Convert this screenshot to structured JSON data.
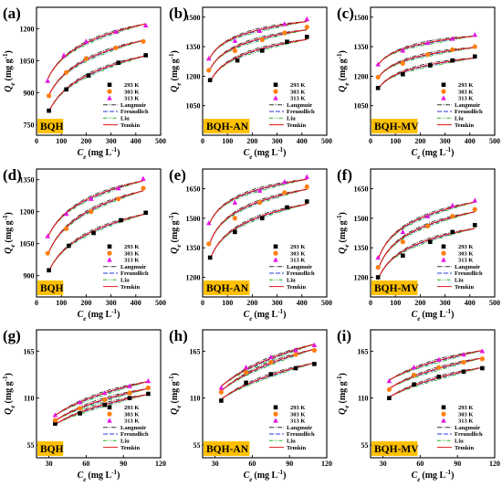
{
  "chart_data": [
    {
      "panel": "(a)",
      "type": "scatter",
      "sample_label": "BQH",
      "xlabel": "Ce (mg L-1)",
      "ylabel": "Qe (mg g-1)",
      "xlim": [
        0,
        500
      ],
      "ylim": [
        700,
        1300
      ],
      "xticks": [
        "0",
        "100",
        "200",
        "300",
        "400",
        "500"
      ],
      "yticks": [
        "750",
        "900",
        "1050",
        "1200"
      ],
      "series": [
        {
          "name": "293 K",
          "x": [
            50,
            120,
            210,
            330,
            440
          ],
          "y": [
            815,
            915,
            980,
            1040,
            1075
          ]
        },
        {
          "name": "303 K",
          "x": [
            50,
            120,
            200,
            320,
            430
          ],
          "y": [
            885,
            995,
            1060,
            1110,
            1140
          ]
        },
        {
          "name": "313 K",
          "x": [
            45,
            110,
            200,
            320,
            440
          ],
          "y": [
            955,
            1075,
            1140,
            1185,
            1215
          ]
        }
      ],
      "models": [
        "Langmuir",
        "Freundlich",
        "Liu",
        "Temkin"
      ]
    },
    {
      "panel": "(b)",
      "type": "scatter",
      "sample_label": "BQH-AN",
      "xlabel": "Ce (mg L-1)",
      "ylabel": "Qe (mg g-1)",
      "xlim": [
        0,
        500
      ],
      "ylim": [
        900,
        1550
      ],
      "xticks": [
        "0",
        "100",
        "200",
        "300",
        "400",
        "500"
      ],
      "yticks": [
        "1050",
        "1200",
        "1350",
        "1500"
      ],
      "series": [
        {
          "name": "293 K",
          "x": [
            30,
            140,
            240,
            340,
            420
          ],
          "y": [
            1180,
            1280,
            1330,
            1375,
            1400
          ]
        },
        {
          "name": "303 K",
          "x": [
            25,
            130,
            240,
            330,
            420
          ],
          "y": [
            1230,
            1330,
            1385,
            1420,
            1450
          ]
        },
        {
          "name": "313 K",
          "x": [
            25,
            130,
            230,
            330,
            420
          ],
          "y": [
            1290,
            1380,
            1430,
            1465,
            1490
          ]
        }
      ],
      "models": [
        "Langmuir",
        "Freundlich",
        "Liu",
        "Temkin"
      ]
    },
    {
      "panel": "(c)",
      "type": "scatter",
      "sample_label": "BQH-MV",
      "xlabel": "Ce (mg L-1)",
      "ylabel": "Qe (mg g-1)",
      "xlim": [
        0,
        500
      ],
      "ylim": [
        900,
        1550
      ],
      "xticks": [
        "0",
        "100",
        "200",
        "300",
        "400",
        "500"
      ],
      "yticks": [
        "1050",
        "1200",
        "1350",
        "1500"
      ],
      "series": [
        {
          "name": "293 K",
          "x": [
            30,
            130,
            240,
            330,
            420
          ],
          "y": [
            1140,
            1210,
            1255,
            1280,
            1300
          ]
        },
        {
          "name": "303 K",
          "x": [
            30,
            130,
            230,
            330,
            420
          ],
          "y": [
            1195,
            1265,
            1310,
            1335,
            1350
          ]
        },
        {
          "name": "313 K",
          "x": [
            30,
            130,
            230,
            330,
            420
          ],
          "y": [
            1260,
            1330,
            1370,
            1390,
            1410
          ]
        }
      ],
      "models": [
        "Langmuir",
        "Freundlich",
        "Liu",
        "Temkin"
      ]
    },
    {
      "panel": "(d)",
      "type": "scatter",
      "sample_label": "BQH",
      "xlabel": "Ce (mg L-1)",
      "ylabel": "Qe (mg g-1)",
      "xlim": [
        0,
        500
      ],
      "ylim": [
        800,
        1400
      ],
      "xticks": [
        "0",
        "100",
        "200",
        "300",
        "400",
        "500"
      ],
      "yticks": [
        "900",
        "1050",
        "1200",
        "1350"
      ],
      "series": [
        {
          "name": "293 K",
          "x": [
            50,
            130,
            230,
            340,
            440
          ],
          "y": [
            925,
            1040,
            1100,
            1160,
            1195
          ]
        },
        {
          "name": "303 K",
          "x": [
            45,
            120,
            220,
            330,
            430
          ],
          "y": [
            1005,
            1120,
            1200,
            1260,
            1310
          ]
        },
        {
          "name": "313 K",
          "x": [
            45,
            120,
            220,
            330,
            430
          ],
          "y": [
            1085,
            1190,
            1260,
            1310,
            1355
          ]
        }
      ],
      "models": [
        "Langmuir",
        "Freundlich",
        "Liu",
        "Temkin"
      ]
    },
    {
      "panel": "(e)",
      "type": "scatter",
      "sample_label": "BQH-AN",
      "xlabel": "Ce (mg L-1)",
      "ylabel": "Qe (mg g-1)",
      "xlim": [
        0,
        500
      ],
      "ylim": [
        1100,
        1750
      ],
      "xticks": [
        "0",
        "100",
        "200",
        "300",
        "400",
        "500"
      ],
      "yticks": [
        "1200",
        "1350",
        "1500",
        "1650"
      ],
      "series": [
        {
          "name": "293 K",
          "x": [
            30,
            130,
            240,
            340,
            420
          ],
          "y": [
            1300,
            1430,
            1500,
            1555,
            1585
          ]
        },
        {
          "name": "303 K",
          "x": [
            25,
            130,
            230,
            330,
            420
          ],
          "y": [
            1370,
            1500,
            1580,
            1630,
            1660
          ]
        },
        {
          "name": "313 K",
          "x": [
            25,
            130,
            230,
            330,
            420
          ],
          "y": [
            1475,
            1580,
            1640,
            1685,
            1710
          ]
        }
      ],
      "models": [
        "Langmuir",
        "Freundlich",
        "Liu",
        "Temkin"
      ]
    },
    {
      "panel": "(f)",
      "type": "scatter",
      "sample_label": "BQH-MV",
      "xlabel": "Ce (mg L-1)",
      "ylabel": "Qe (mg g-1)",
      "xlim": [
        0,
        500
      ],
      "ylim": [
        1100,
        1750
      ],
      "xticks": [
        "0",
        "100",
        "200",
        "300",
        "400",
        "500"
      ],
      "yticks": [
        "1200",
        "1350",
        "1500",
        "1650"
      ],
      "series": [
        {
          "name": "293 K",
          "x": [
            30,
            130,
            240,
            330,
            420
          ],
          "y": [
            1200,
            1310,
            1380,
            1430,
            1465
          ]
        },
        {
          "name": "303 K",
          "x": [
            30,
            130,
            230,
            330,
            420
          ],
          "y": [
            1250,
            1380,
            1460,
            1510,
            1545
          ]
        },
        {
          "name": "313 K",
          "x": [
            30,
            130,
            230,
            330,
            420
          ],
          "y": [
            1300,
            1430,
            1510,
            1565,
            1590
          ]
        }
      ],
      "models": [
        "Langmuir",
        "Freundlich",
        "Liu",
        "Temkin"
      ]
    },
    {
      "panel": "(g)",
      "type": "scatter",
      "sample_label": "BQH",
      "xlabel": "Ce (mg L-1)",
      "ylabel": "Qe (mg g-1)",
      "xlim": [
        20,
        120
      ],
      "ylim": [
        40,
        190
      ],
      "xticks": [
        "30",
        "60",
        "90",
        "120"
      ],
      "yticks": [
        "55",
        "110",
        "165"
      ],
      "series": [
        {
          "name": "293 K",
          "x": [
            35,
            55,
            75,
            95,
            110
          ],
          "y": [
            80,
            92,
            102,
            110,
            115
          ]
        },
        {
          "name": "303 K",
          "x": [
            35,
            55,
            75,
            95,
            110
          ],
          "y": [
            84,
            98,
            108,
            116,
            122
          ]
        },
        {
          "name": "313 K",
          "x": [
            35,
            55,
            75,
            95,
            110
          ],
          "y": [
            90,
            105,
            116,
            124,
            130
          ]
        }
      ],
      "models": [
        "Langmuir",
        "Freundlich",
        "Liu",
        "Temkin"
      ]
    },
    {
      "panel": "(h)",
      "type": "scatter",
      "sample_label": "BQH-AN",
      "xlabel": "Ce (mg L-1)",
      "ylabel": "Qe (mg g-1)",
      "xlim": [
        20,
        120
      ],
      "ylim": [
        40,
        190
      ],
      "xticks": [
        "30",
        "60",
        "90",
        "120"
      ],
      "yticks": [
        "55",
        "110",
        "165"
      ],
      "series": [
        {
          "name": "293 K",
          "x": [
            35,
            55,
            75,
            95,
            110
          ],
          "y": [
            107,
            128,
            138,
            145,
            150
          ]
        },
        {
          "name": "303 K",
          "x": [
            35,
            55,
            75,
            95,
            110
          ],
          "y": [
            117,
            140,
            152,
            161,
            166
          ]
        },
        {
          "name": "313 K",
          "x": [
            35,
            55,
            75,
            95,
            110
          ],
          "y": [
            122,
            146,
            158,
            166,
            172
          ]
        }
      ],
      "models": [
        "Langmuir",
        "Freundlich",
        "Liu",
        "Temkin"
      ]
    },
    {
      "panel": "(i)",
      "type": "scatter",
      "sample_label": "BQH-MV",
      "xlabel": "Ce (mg L-1)",
      "ylabel": "Qe (mg g-1)",
      "xlim": [
        20,
        120
      ],
      "ylim": [
        40,
        190
      ],
      "xticks": [
        "30",
        "60",
        "90",
        "120"
      ],
      "yticks": [
        "55",
        "110",
        "165"
      ],
      "series": [
        {
          "name": "293 K",
          "x": [
            35,
            55,
            75,
            95,
            110
          ],
          "y": [
            110,
            126,
            135,
            141,
            145
          ]
        },
        {
          "name": "303 K",
          "x": [
            35,
            55,
            75,
            95,
            110
          ],
          "y": [
            120,
            137,
            146,
            152,
            156
          ]
        },
        {
          "name": "313 K",
          "x": [
            35,
            55,
            75,
            95,
            110
          ],
          "y": [
            130,
            146,
            155,
            161,
            165
          ]
        }
      ],
      "models": [
        "Langmuir",
        "Freundlich",
        "Liu",
        "Temkin"
      ]
    }
  ],
  "style": {
    "series_colors": [
      "#000000",
      "#ff7f0e",
      "#e316e3"
    ],
    "series_markers": [
      "square",
      "circle",
      "triangle"
    ],
    "model_colors": {
      "Langmuir": "#333333",
      "Freundlich": "#2b3bdc",
      "Liu": "#27b227",
      "Temkin": "#e21a1a"
    },
    "model_dashes": {
      "Langmuir": "5,1.5,1,1.5",
      "Freundlich": "5,2",
      "Liu": "4,1.5,1,1.5,1,1.5",
      "Temkin": ""
    },
    "label_box_color": "#ffc000"
  }
}
